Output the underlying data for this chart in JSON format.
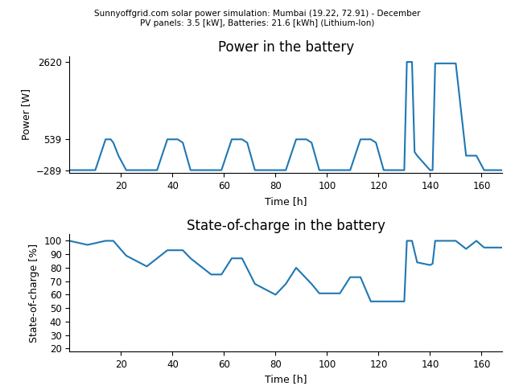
{
  "suptitle_line1": "Sunnyoffgrid.com solar power simulation: Mumbai (19.22, 72.91) - December",
  "suptitle_line2": "PV panels: 3.5 [kW], Batteries: 21.6 [kWh] (Lithium-Ion)",
  "plot1_title": "Power in the battery",
  "plot1_ylabel": "Power [W]",
  "plot1_xlabel": "Time [h]",
  "plot1_yticks": [
    -289,
    539,
    2620
  ],
  "plot1_xlim": [
    0,
    168
  ],
  "plot1_ylim": [
    -370,
    2780
  ],
  "plot2_title": "State-of-charge in the battery",
  "plot2_ylabel": "State-of-charge [%]",
  "plot2_xlabel": "Time [h]",
  "plot2_yticks": [
    20,
    30,
    40,
    50,
    60,
    70,
    80,
    90,
    100
  ],
  "plot2_xlim": [
    0,
    168
  ],
  "plot2_ylim": [
    18,
    105
  ],
  "line_color": "#1f77b4",
  "line_width": 1.5,
  "xticks": [
    20,
    40,
    60,
    80,
    100,
    120,
    140,
    160
  ],
  "power_data": {
    "t": [
      0,
      7,
      10,
      14,
      16,
      17,
      19,
      22,
      30,
      34,
      38,
      42,
      44,
      47,
      55,
      59,
      63,
      67,
      69,
      72,
      80,
      84,
      88,
      92,
      94,
      97,
      105,
      109,
      113,
      117,
      119,
      122,
      126,
      130,
      131,
      133,
      134,
      135,
      140,
      141,
      142,
      150,
      154,
      158,
      161,
      162,
      168
    ],
    "y": [
      -289,
      -289,
      -289,
      539,
      539,
      450,
      100,
      -289,
      -289,
      -289,
      539,
      539,
      450,
      -289,
      -289,
      -289,
      539,
      539,
      450,
      -289,
      -289,
      -289,
      539,
      539,
      450,
      -289,
      -289,
      -289,
      539,
      539,
      450,
      -289,
      -289,
      -289,
      2620,
      2620,
      200,
      100,
      -289,
      -289,
      2580,
      2580,
      100,
      100,
      -289,
      -289,
      -289
    ]
  },
  "soc_data": {
    "t": [
      0,
      7,
      14,
      17,
      22,
      30,
      38,
      44,
      47,
      55,
      59,
      63,
      67,
      72,
      80,
      84,
      88,
      94,
      97,
      105,
      109,
      113,
      117,
      122,
      126,
      130,
      131,
      133,
      135,
      140,
      141,
      142,
      150,
      154,
      158,
      161,
      168
    ],
    "y": [
      100,
      97,
      100,
      100,
      89,
      81,
      93,
      93,
      87,
      75,
      75,
      87,
      87,
      68,
      60,
      68,
      80,
      68,
      61,
      61,
      73,
      73,
      55,
      55,
      55,
      55,
      100,
      100,
      84,
      82,
      83,
      100,
      100,
      94,
      100,
      95,
      95
    ]
  }
}
